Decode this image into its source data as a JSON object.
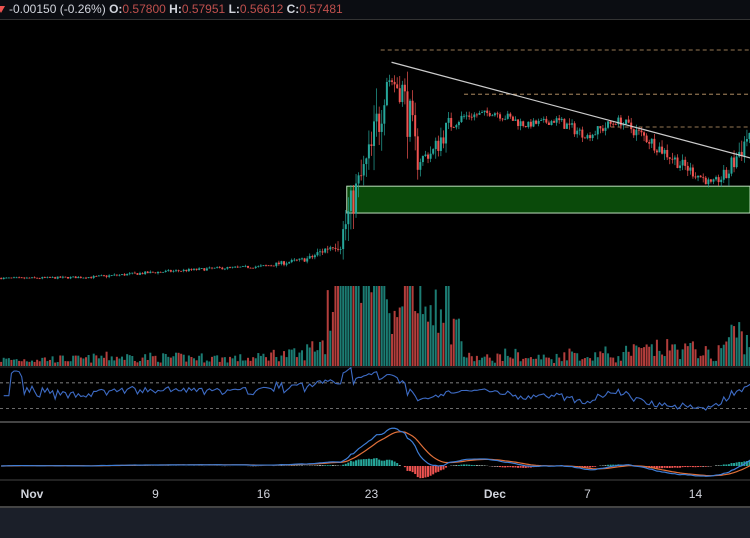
{
  "header": {
    "change": "-0.00150 (-0.26%)",
    "o_label": "O:",
    "o": "0.57800",
    "h_label": "H:",
    "h": "0.57951",
    "l_label": "L:",
    "l": "0.56612",
    "c_label": "C:",
    "c": "0.57481"
  },
  "colors": {
    "up": "#26a69a",
    "down": "#ef5350",
    "rsi": "#3d6bc4",
    "macd": "#3f7fd8",
    "signal": "#e0703a",
    "zone": "#0a4a0a",
    "trend": "#cccccc",
    "dash": "#c8a070"
  },
  "chart_data": {
    "type": "candlestick",
    "x_ticks": [
      {
        "label": "Nov",
        "day": 0
      },
      {
        "label": "9",
        "day": 8
      },
      {
        "label": "16",
        "day": 15
      },
      {
        "label": "23",
        "day": 22
      },
      {
        "label": "Dec",
        "day": 30
      },
      {
        "label": "7",
        "day": 36
      },
      {
        "label": "14",
        "day": 43
      }
    ],
    "close_path": [
      [
        -2,
        0.2
      ],
      [
        0,
        0.2
      ],
      [
        4,
        0.203
      ],
      [
        8,
        0.215
      ],
      [
        12,
        0.225
      ],
      [
        15,
        0.23
      ],
      [
        18,
        0.25
      ],
      [
        20,
        0.296
      ],
      [
        21,
        0.42
      ],
      [
        22,
        0.52
      ],
      [
        23,
        0.71
      ],
      [
        24,
        0.675
      ],
      [
        25,
        0.5
      ],
      [
        26,
        0.52
      ],
      [
        27,
        0.588
      ],
      [
        28,
        0.61
      ],
      [
        30,
        0.62
      ],
      [
        32,
        0.588
      ],
      [
        34,
        0.6
      ],
      [
        36,
        0.56
      ],
      [
        38,
        0.6
      ],
      [
        40,
        0.55
      ],
      [
        42,
        0.49
      ],
      [
        44,
        0.44
      ],
      [
        45,
        0.46
      ],
      [
        46.6,
        0.575
      ]
    ],
    "ylim": [
      0.17,
      0.854
    ],
    "zone": {
      "from_day": 20.4,
      "low": 0.365,
      "high": 0.433
    },
    "trendline": [
      [
        23.3,
        0.747
      ],
      [
        46.6,
        0.504
      ]
    ],
    "levels": [
      {
        "from_day": 22.6,
        "price": 0.778
      },
      {
        "from_day": 28,
        "price": 0.666
      },
      {
        "from_day": 37.5,
        "price": 0.583
      }
    ],
    "indicators": [
      "Volume",
      "RSI",
      "MACD"
    ]
  }
}
